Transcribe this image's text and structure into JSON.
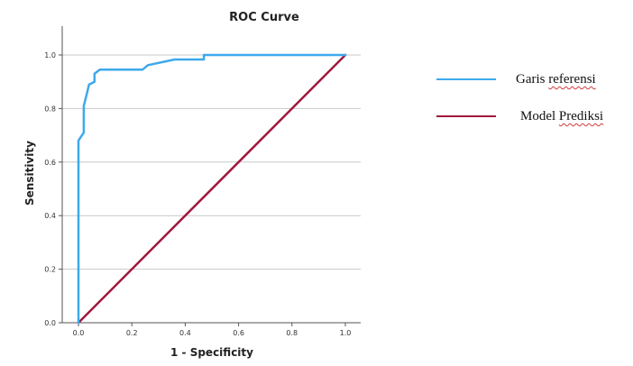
{
  "chart_data": {
    "type": "line",
    "title": "ROC Curve",
    "xlabel": "1 - Specificity",
    "ylabel": "Sensitivity",
    "xlim": [
      0.0,
      1.0
    ],
    "ylim": [
      0.0,
      1.0
    ],
    "x_ticks": [
      "0.0",
      "0.2",
      "0.4",
      "0.6",
      "0.8",
      "1.0"
    ],
    "y_ticks": [
      "0.0",
      "0.2",
      "0.4",
      "0.6",
      "0.8",
      "1.0"
    ],
    "grid": "horizontal",
    "legend_position": "right",
    "series": [
      {
        "name": "Garis referensi",
        "color": "#3da9ec",
        "x": [
          0.0,
          0.0,
          0.0,
          0.02,
          0.02,
          0.02,
          0.03,
          0.04,
          0.06,
          0.06,
          0.08,
          0.24,
          0.26,
          0.36,
          0.47,
          0.47,
          1.0
        ],
        "y": [
          0.0,
          0.59,
          0.68,
          0.71,
          0.77,
          0.81,
          0.85,
          0.89,
          0.9,
          0.93,
          0.945,
          0.945,
          0.962,
          0.983,
          0.983,
          1.0,
          1.0
        ]
      },
      {
        "name": "Model Prediksi",
        "color": "#a0183c",
        "x": [
          0.0,
          1.0
        ],
        "y": [
          0.0,
          1.0
        ]
      }
    ]
  },
  "legend": {
    "items": [
      {
        "prefix": "Garis ",
        "underlined": "referensi",
        "color": "#3da9ec"
      },
      {
        "prefix": "Model ",
        "underlined": "Prediksi",
        "color": "#a0183c"
      }
    ]
  }
}
